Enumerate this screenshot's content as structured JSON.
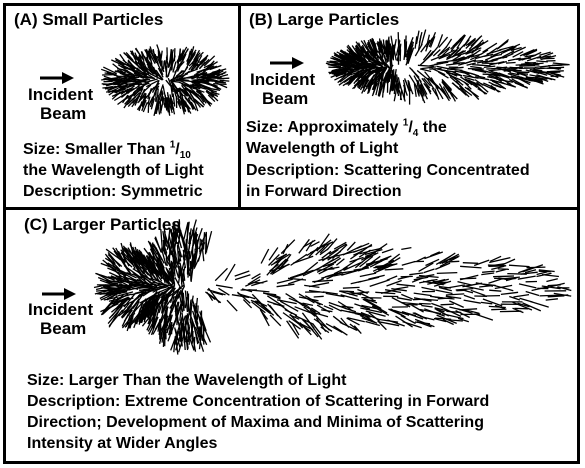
{
  "panel_a": {
    "title": "(A) Small Particles",
    "beam_label_1": "Incident",
    "beam_label_2": "Beam",
    "size_prefix": "Size: Smaller Than ",
    "size_frac_num": "1",
    "size_frac_den": "10",
    "size_line2": "the Wavelength of Light",
    "description": "Description: Symmetric"
  },
  "panel_b": {
    "title": "(B) Large Particles",
    "beam_label_1": "Incident",
    "beam_label_2": "Beam",
    "size_prefix": "Size: Approximately ",
    "size_frac_num": "1",
    "size_frac_den": "4",
    "size_suffix": " the",
    "size_line2": "Wavelength of Light",
    "description_line1": "Description: Scattering Concentrated",
    "description_line2": "in Forward Direction"
  },
  "panel_c": {
    "title": "(C) Larger Particles",
    "beam_label_1": "Incident",
    "beam_label_2": "Beam",
    "size": "Size: Larger Than the Wavelength of Light",
    "description_line1": "Description: Extreme Concentration of Scattering in Forward",
    "description_line2": "Direction; Development of Maxima and Minima of Scattering",
    "description_line3": "Intensity at Wider Angles"
  },
  "colors": {
    "ink": "#000000",
    "background": "#ffffff"
  }
}
